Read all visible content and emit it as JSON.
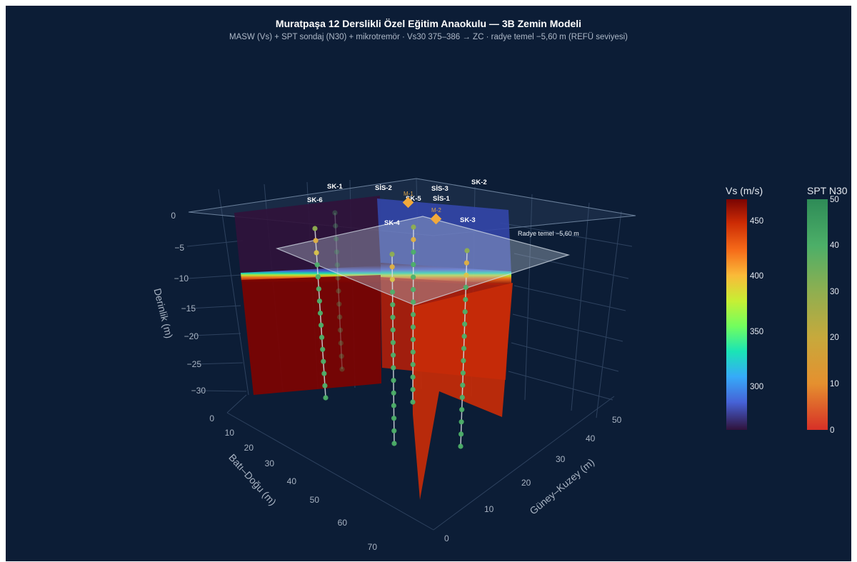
{
  "header": {
    "title": "Muratpaşa 12 Derslikli Özel Eğitim Anaokulu — 3B Zemin Modeli",
    "subtitle": "MASW (Vs) + SPT sondaj (N30) + mikrotremör · Vs30 375–386 → ZC · radye temel −5,60 m (REFÜ seviyesi)"
  },
  "chart_data": {
    "type": "scatter3d",
    "axes": {
      "x": {
        "title": "Batı–Doğu (m)",
        "ticks": [
          "0",
          "10",
          "20",
          "30",
          "40",
          "50",
          "60",
          "70"
        ],
        "range": [
          0,
          75
        ]
      },
      "y": {
        "title": "Güney–Kuzey (m)",
        "ticks": [
          "0",
          "10",
          "20",
          "30",
          "40",
          "50"
        ],
        "range": [
          0,
          55
        ]
      },
      "z": {
        "title": "Derinlik (m)",
        "ticks": [
          "0",
          "−5",
          "−10",
          "−15",
          "−20",
          "−25",
          "−30"
        ],
        "range": [
          -33,
          0
        ]
      }
    },
    "foundation_plane": {
      "label": "Radye temel −5,60 m",
      "depth": -5.6
    },
    "boreholes": [
      "SK-1",
      "SK-2",
      "SK-3",
      "SK-4",
      "SK-5",
      "SK-6"
    ],
    "seismic_points": [
      "SİS-1",
      "SİS-2",
      "SİS-3"
    ],
    "microtremor_points": [
      "M-1",
      "M-2"
    ],
    "colorbars": [
      {
        "title": "Vs (m/s)",
        "ticks": [
          "450",
          "400",
          "350",
          "300"
        ],
        "range": [
          260,
          470
        ],
        "colors": [
          "#30123b",
          "#4662d7",
          "#36aaf9",
          "#1ae4b6",
          "#72fe5e",
          "#c7ef34",
          "#faba39",
          "#f66b19",
          "#cb2a04",
          "#7a0403"
        ]
      },
      {
        "title": "SPT N30",
        "ticks": [
          "50",
          "40",
          "30",
          "20",
          "10",
          "0"
        ],
        "range": [
          0,
          50
        ],
        "colors": [
          "#d73027",
          "#e5902f",
          "#c7a93c",
          "#8faf50",
          "#4caf68",
          "#2e8b57"
        ]
      }
    ],
    "legend": "none",
    "grid": true
  },
  "colors": {
    "background": "#0c1d36",
    "deep_layer": "#7a0403",
    "shallow_layer": "#30123b",
    "spt_marker": "#4caf68",
    "microtremor": "#f2a93b"
  }
}
